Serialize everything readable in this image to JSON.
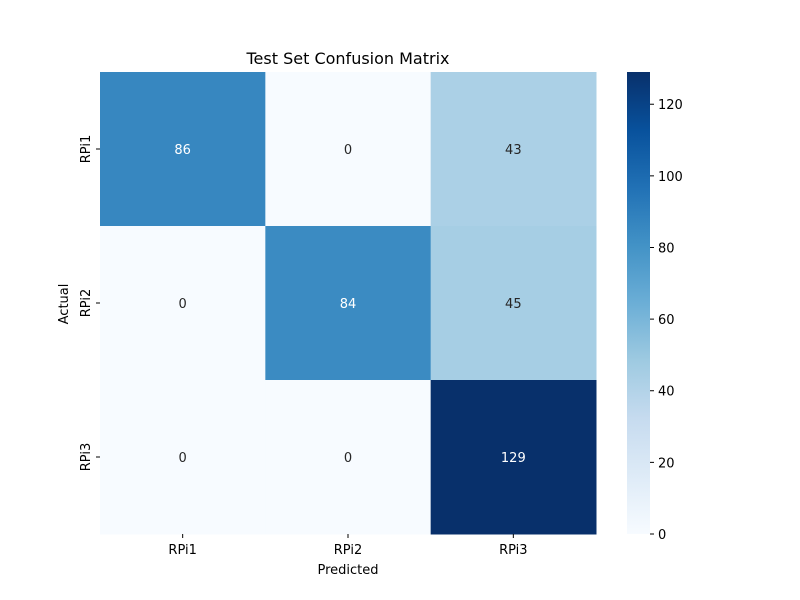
{
  "chart_data": {
    "type": "heatmap",
    "title": "Test Set Confusion Matrix",
    "xlabel": "Predicted",
    "ylabel": "Actual",
    "x_categories": [
      "RPi1",
      "RPi2",
      "RPi3"
    ],
    "y_categories": [
      "RPi1",
      "RPi2",
      "RPi3"
    ],
    "values": [
      [
        86,
        0,
        43
      ],
      [
        0,
        84,
        45
      ],
      [
        0,
        0,
        129
      ]
    ],
    "colormap": "Blues",
    "color_range": [
      0,
      129
    ],
    "colorbar_ticks": [
      0,
      20,
      40,
      60,
      80,
      100,
      120
    ],
    "colorbar_tick_labels": [
      "0",
      "20",
      "40",
      "60",
      "80",
      "100",
      "120"
    ]
  }
}
